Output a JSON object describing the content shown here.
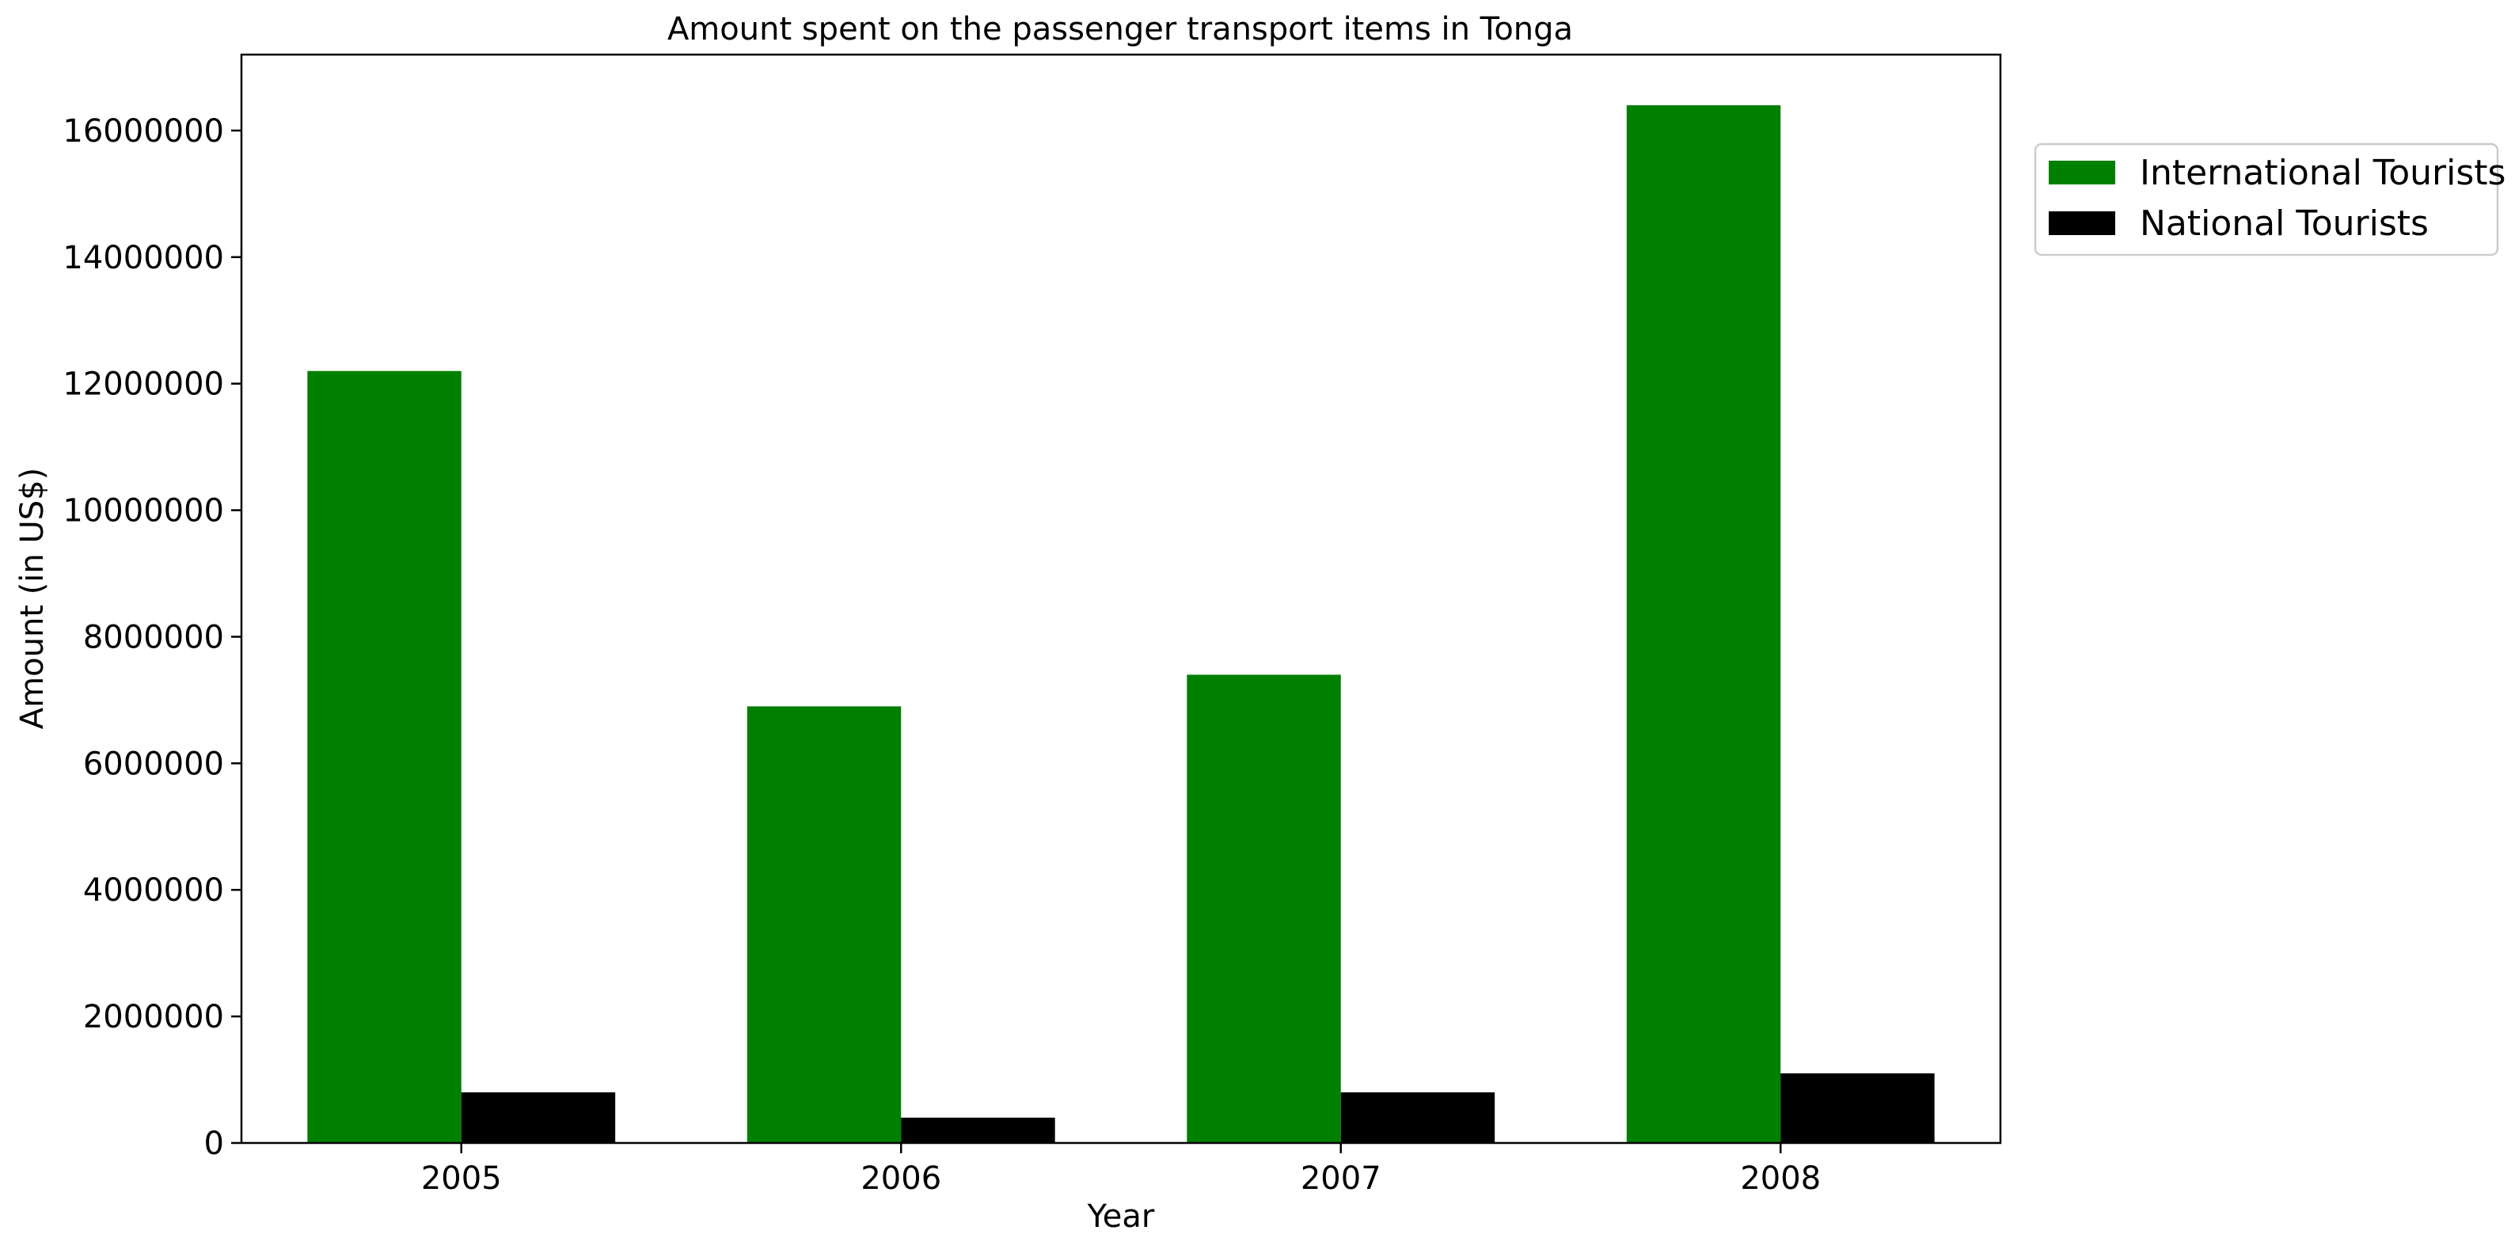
{
  "chart_data": {
    "type": "bar",
    "title": "Amount spent on the passenger transport items in Tonga",
    "xlabel": "Year",
    "ylabel": "Amount (in US$)",
    "categories": [
      "2005",
      "2006",
      "2007",
      "2008"
    ],
    "series": [
      {
        "name": "International Tourists",
        "color": "#008000",
        "values": [
          12200000,
          6900000,
          7400000,
          16400000
        ]
      },
      {
        "name": "National Tourists",
        "color": "#000000",
        "values": [
          800000,
          400000,
          800000,
          1100000
        ]
      }
    ],
    "ylim": [
      0,
      17200000
    ],
    "yticks": [
      0,
      2000000,
      4000000,
      6000000,
      8000000,
      10000000,
      12000000,
      14000000,
      16000000
    ],
    "ytick_labels": [
      "0",
      "2000000",
      "4000000",
      "6000000",
      "8000000",
      "10000000",
      "12000000",
      "14000000",
      "16000000"
    ],
    "grid": false,
    "legend": "outside-upper-right"
  }
}
